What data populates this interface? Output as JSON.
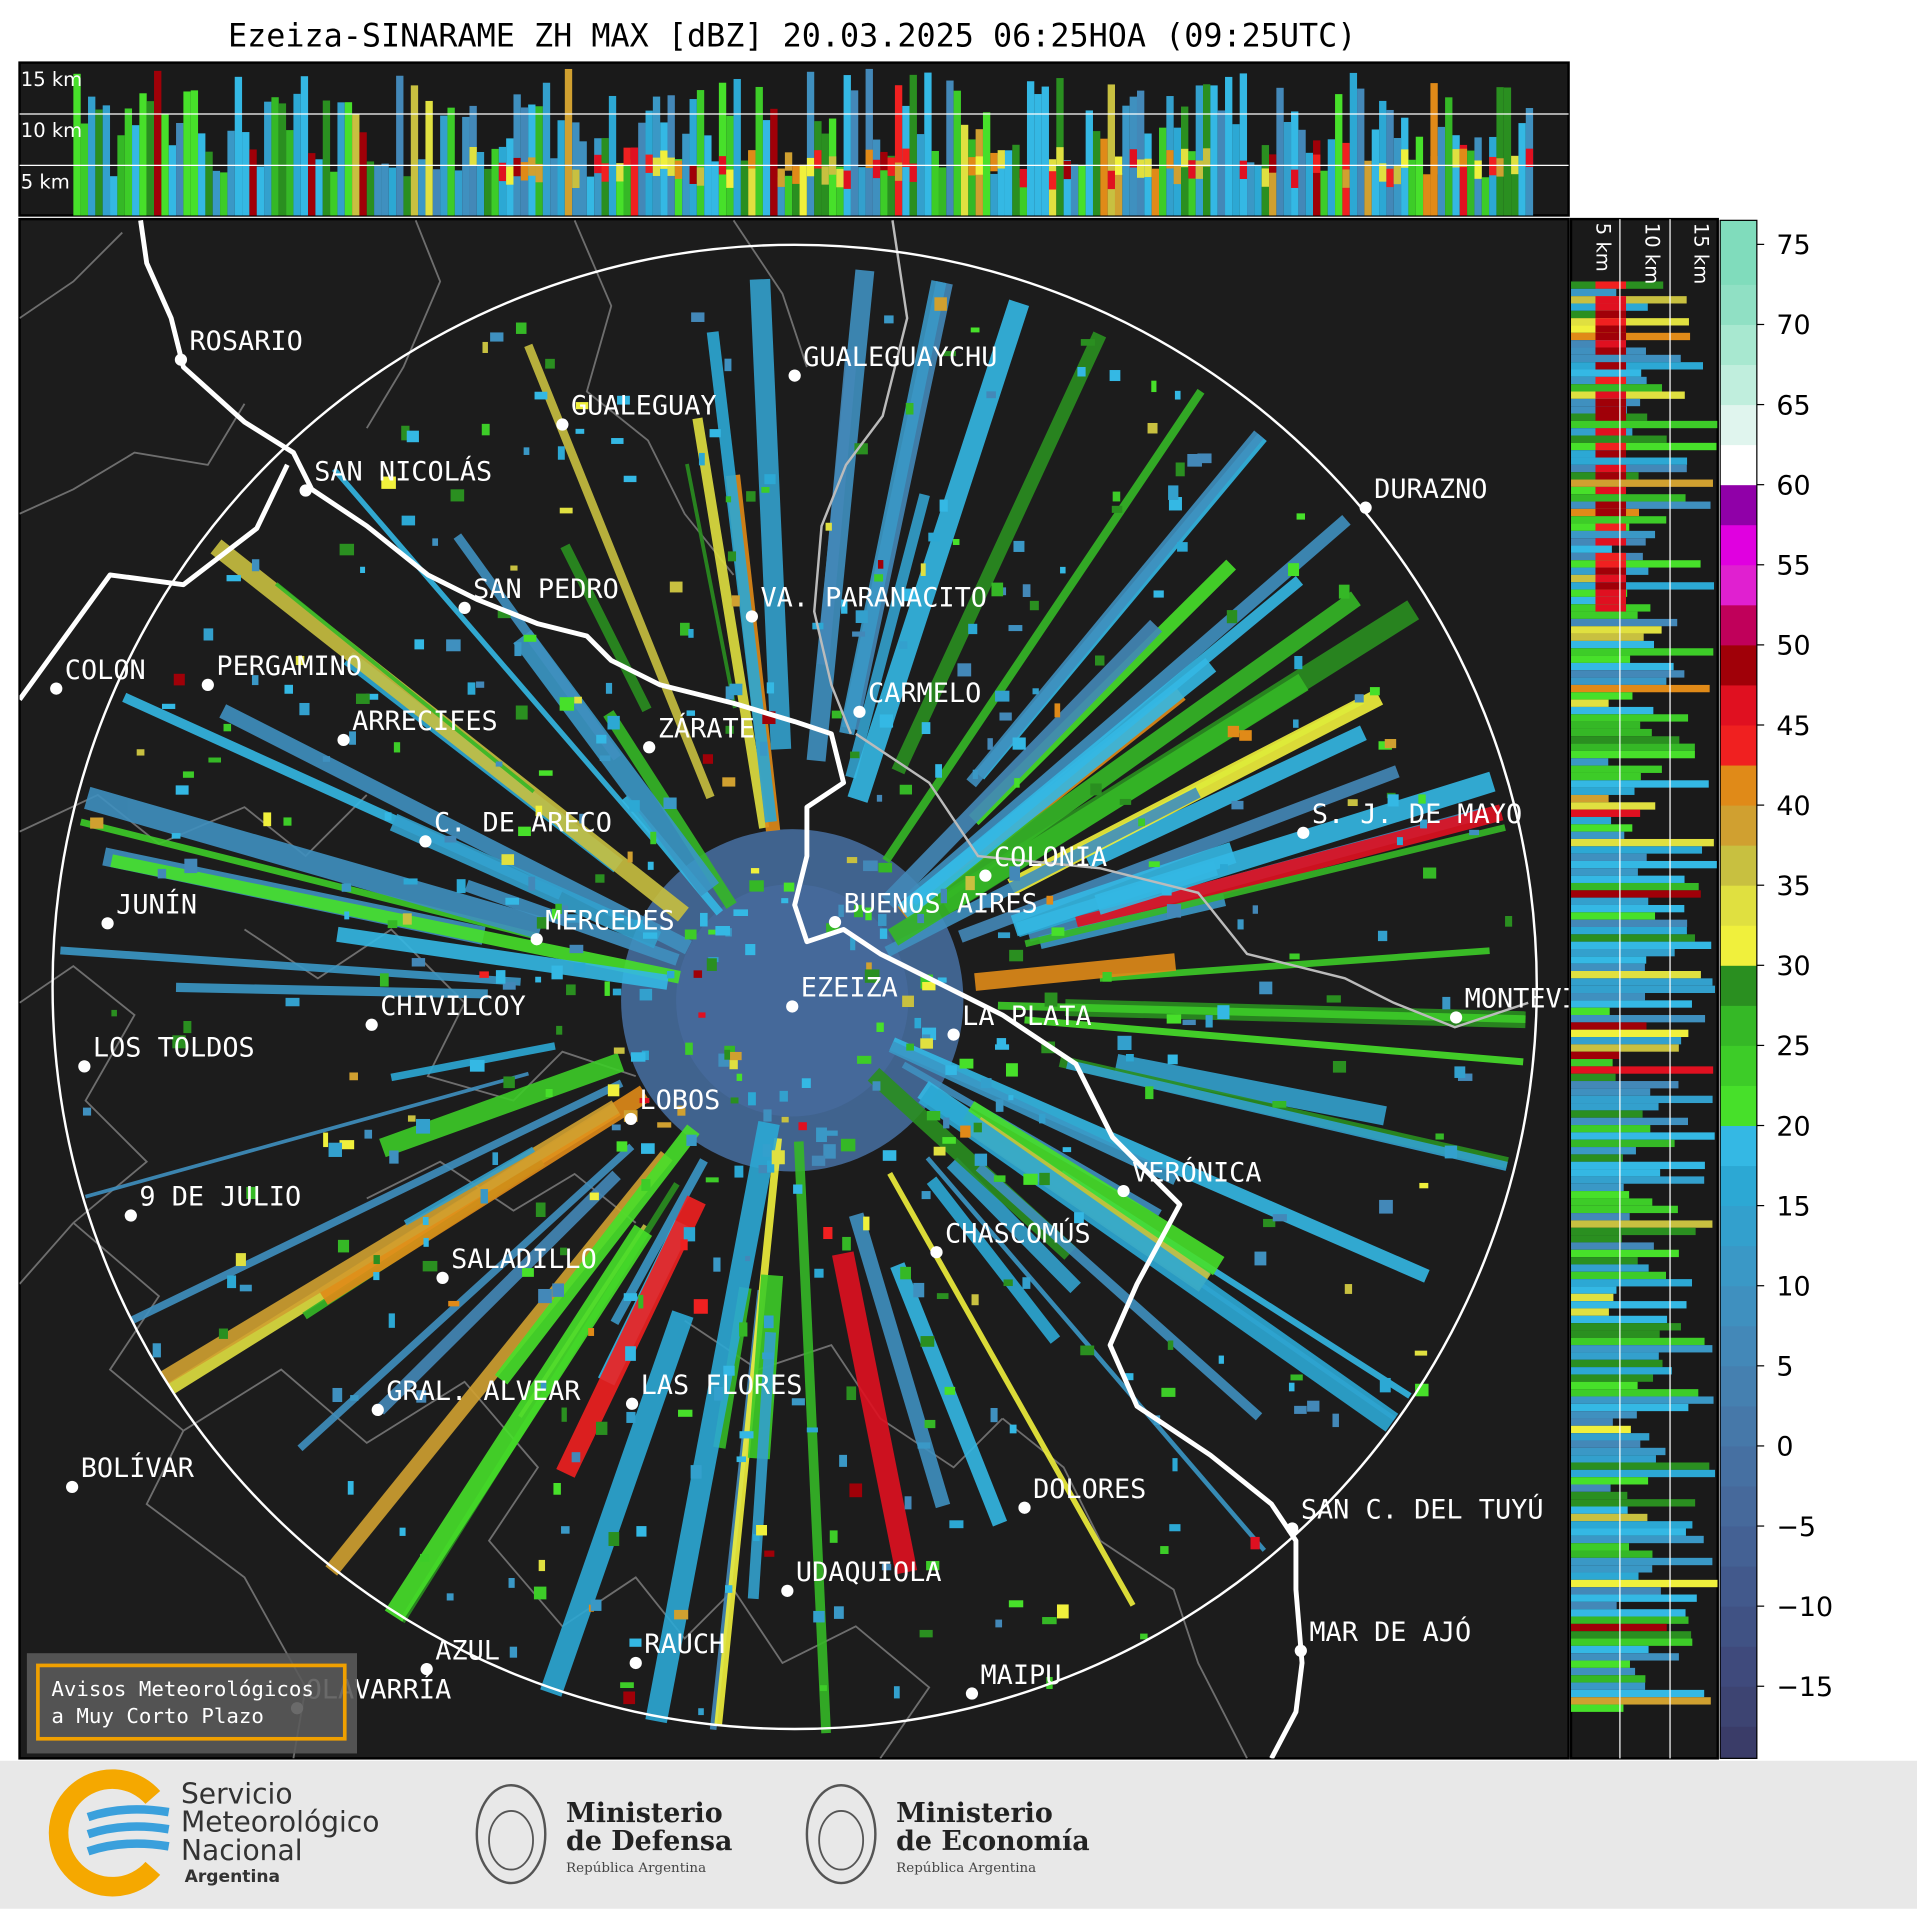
{
  "title": "Ezeiza-SINARAME ZH MAX [dBZ] 20.03.2025 06:25HOA (09:25UTC)",
  "top_profile_labels": [
    "15 km",
    "10 km",
    "5 km"
  ],
  "side_profile_labels": [
    "5 km",
    "10 km",
    "15 km"
  ],
  "cities": [
    "ROSARIO",
    "GUALEGUAYCHU",
    "GUALEGUAY",
    "SAN NICOLÁS",
    "DURAZNO",
    "SAN PEDRO",
    "VA. PARANACITO",
    "COLON",
    "PERGAMINO",
    "CARMELO",
    "ARRECIFES",
    "ZÁRATE",
    "S. J. DE MAYO",
    "C. DE ARECO",
    "COLONIA",
    "BUENOS AIRES",
    "JUNÍN",
    "MERCEDES",
    "EZEIZA",
    "MONTEVIDEO",
    "LA PLATA",
    "CHIVILCOY",
    "LOS TOLDOS",
    "LOBOS",
    "VERÓNICA",
    "9 DE JULIO",
    "CHASCOMÚS",
    "SALADILLO",
    "GRAL. ALVEAR",
    "LAS FLORES",
    "BOLÍVAR",
    "DOLORES",
    "SAN C. DEL TUYÚ",
    "UDAQUIOLA",
    "MAR DE AJÓ",
    "AZUL",
    "RAUCH",
    "OLAVARRÍA",
    "MAIPU"
  ],
  "colorbar": {
    "range": [
      -19.5,
      76.5
    ],
    "ticks": [
      75,
      70,
      65,
      60,
      55,
      50,
      45,
      40,
      35,
      30,
      25,
      20,
      15,
      10,
      5,
      0,
      {
        "value": -5,
        "label": "−5"
      },
      {
        "value": -10,
        "label": "−10"
      },
      {
        "value": -15,
        "label": "−15"
      }
    ],
    "bounds": [
      -19.5,
      -17.5,
      -15,
      -12.5,
      -10,
      -7.5,
      -5,
      -2.5,
      0,
      2.5,
      5,
      7.5,
      10,
      12.5,
      15,
      17.5,
      20,
      22.5,
      25,
      27.5,
      30,
      32.5,
      35,
      37.5,
      40,
      42.5,
      45,
      47.5,
      50,
      52.5,
      55,
      57.5,
      60,
      62.5,
      65,
      67.5,
      70,
      72.5,
      76.5
    ],
    "colors": [
      "#3a3c68",
      "#3d4472",
      "#3f4a7c",
      "#405284",
      "#42598c",
      "#446194",
      "#46699b",
      "#4670a2",
      "#4678a9",
      "#4580b0",
      "#4388b8",
      "#3f90bf",
      "#3a98c6",
      "#33a0cd",
      "#2ca8d4",
      "#34b8e4",
      "#47e02a",
      "#3dcc28",
      "#35b826",
      "#2a8f20",
      "#f0f03c",
      "#e0e040",
      "#c8c040",
      "#d0a030",
      "#e08a18",
      "#f02020",
      "#e01020",
      "#a00008",
      "#c0005a",
      "#e020d0",
      "#e000e0",
      "#9000a8",
      "#ffffff",
      "#e0f5ee",
      "#c0eedd",
      "#a8e8d0",
      "#90e0c4",
      "#80dcbc"
    ]
  },
  "alert_box": [
    "Avisos Meteorológicos",
    "a Muy Corto Plazo"
  ],
  "footer": {
    "smn": [
      "Servicio",
      "Meteorológico",
      "Nacional",
      "Argentina"
    ],
    "defensa": [
      "Ministerio",
      "de Defensa",
      "República Argentina"
    ],
    "economia": [
      "Ministerio",
      "de Economía",
      "República Argentina"
    ]
  }
}
